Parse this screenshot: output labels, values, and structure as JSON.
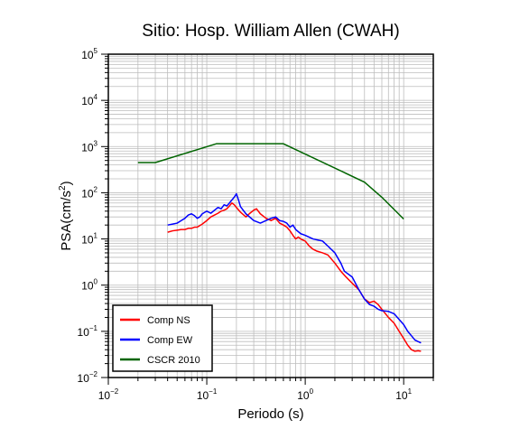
{
  "chart_data": {
    "type": "line",
    "title": "Sitio: Hosp. William Allen (CWAH)",
    "xlabel": "Periodo (s)",
    "ylabel_main": "PSA(cm/s",
    "ylabel_sup": "2",
    "ylabel_tail": ")",
    "xscale": "log",
    "yscale": "log",
    "xlim": [
      0.01,
      20
    ],
    "ylim": [
      0.01,
      100000
    ],
    "grid": true,
    "legend_position": "bottom-left",
    "x_tick_labels": [
      {
        "value": 0.01,
        "base": "10",
        "exp": "−2"
      },
      {
        "value": 0.1,
        "base": "10",
        "exp": "−1"
      },
      {
        "value": 1,
        "base": "10",
        "exp": "0"
      },
      {
        "value": 10,
        "base": "10",
        "exp": "1"
      }
    ],
    "y_tick_labels": [
      {
        "value": 0.01,
        "base": "10",
        "exp": "−2"
      },
      {
        "value": 0.1,
        "base": "10",
        "exp": "−1"
      },
      {
        "value": 1,
        "base": "10",
        "exp": "0"
      },
      {
        "value": 10,
        "base": "10",
        "exp": "1"
      },
      {
        "value": 100,
        "base": "10",
        "exp": "2"
      },
      {
        "value": 1000,
        "base": "10",
        "exp": "3"
      },
      {
        "value": 10000,
        "base": "10",
        "exp": "4"
      },
      {
        "value": 100000,
        "base": "10",
        "exp": "5"
      }
    ],
    "series": [
      {
        "name": "Comp NS",
        "color": "#ff0000",
        "points": [
          [
            0.04,
            14
          ],
          [
            0.045,
            15
          ],
          [
            0.05,
            15.5
          ],
          [
            0.055,
            16
          ],
          [
            0.06,
            16
          ],
          [
            0.065,
            17
          ],
          [
            0.07,
            17
          ],
          [
            0.075,
            18
          ],
          [
            0.08,
            18
          ],
          [
            0.09,
            21
          ],
          [
            0.1,
            25
          ],
          [
            0.11,
            30
          ],
          [
            0.12,
            33
          ],
          [
            0.13,
            36
          ],
          [
            0.14,
            40
          ],
          [
            0.15,
            42
          ],
          [
            0.16,
            45
          ],
          [
            0.17,
            52
          ],
          [
            0.18,
            60
          ],
          [
            0.19,
            55
          ],
          [
            0.2,
            48
          ],
          [
            0.22,
            38
          ],
          [
            0.25,
            30
          ],
          [
            0.27,
            35
          ],
          [
            0.3,
            42
          ],
          [
            0.32,
            45
          ],
          [
            0.35,
            35
          ],
          [
            0.4,
            28
          ],
          [
            0.45,
            25
          ],
          [
            0.5,
            28
          ],
          [
            0.55,
            22
          ],
          [
            0.6,
            20
          ],
          [
            0.65,
            18
          ],
          [
            0.7,
            15
          ],
          [
            0.75,
            12
          ],
          [
            0.8,
            10
          ],
          [
            0.85,
            11
          ],
          [
            0.9,
            10
          ],
          [
            1.0,
            9
          ],
          [
            1.1,
            7
          ],
          [
            1.2,
            6
          ],
          [
            1.3,
            5.5
          ],
          [
            1.5,
            5
          ],
          [
            1.7,
            4.5
          ],
          [
            2.0,
            3
          ],
          [
            2.3,
            2
          ],
          [
            2.6,
            1.5
          ],
          [
            3.0,
            1.1
          ],
          [
            3.5,
            0.8
          ],
          [
            4.0,
            0.5
          ],
          [
            4.5,
            0.42
          ],
          [
            5.0,
            0.45
          ],
          [
            5.5,
            0.38
          ],
          [
            6.0,
            0.3
          ],
          [
            7.0,
            0.2
          ],
          [
            8.0,
            0.15
          ],
          [
            9.0,
            0.1
          ],
          [
            10,
            0.07
          ],
          [
            11,
            0.05
          ],
          [
            12,
            0.04
          ],
          [
            13,
            0.037
          ],
          [
            14,
            0.038
          ],
          [
            15,
            0.037
          ]
        ]
      },
      {
        "name": "Comp EW",
        "color": "#0000ff",
        "points": [
          [
            0.04,
            20
          ],
          [
            0.045,
            21
          ],
          [
            0.05,
            22
          ],
          [
            0.055,
            25
          ],
          [
            0.06,
            28
          ],
          [
            0.065,
            33
          ],
          [
            0.07,
            35
          ],
          [
            0.075,
            32
          ],
          [
            0.08,
            28
          ],
          [
            0.085,
            30
          ],
          [
            0.09,
            35
          ],
          [
            0.1,
            40
          ],
          [
            0.11,
            36
          ],
          [
            0.12,
            42
          ],
          [
            0.13,
            48
          ],
          [
            0.14,
            45
          ],
          [
            0.15,
            55
          ],
          [
            0.16,
            52
          ],
          [
            0.17,
            60
          ],
          [
            0.18,
            70
          ],
          [
            0.19,
            80
          ],
          [
            0.2,
            95
          ],
          [
            0.21,
            70
          ],
          [
            0.22,
            50
          ],
          [
            0.25,
            35
          ],
          [
            0.3,
            25
          ],
          [
            0.35,
            22
          ],
          [
            0.4,
            25
          ],
          [
            0.45,
            28
          ],
          [
            0.5,
            30
          ],
          [
            0.55,
            25
          ],
          [
            0.6,
            24
          ],
          [
            0.65,
            22
          ],
          [
            0.7,
            18
          ],
          [
            0.75,
            20
          ],
          [
            0.8,
            16
          ],
          [
            0.9,
            13
          ],
          [
            1.0,
            12
          ],
          [
            1.2,
            10
          ],
          [
            1.5,
            9
          ],
          [
            1.7,
            7
          ],
          [
            2.0,
            5
          ],
          [
            2.3,
            3
          ],
          [
            2.5,
            2
          ],
          [
            3.0,
            1.5
          ],
          [
            3.5,
            0.8
          ],
          [
            4.0,
            0.5
          ],
          [
            4.5,
            0.38
          ],
          [
            5.0,
            0.35
          ],
          [
            5.5,
            0.3
          ],
          [
            6.0,
            0.28
          ],
          [
            7.0,
            0.27
          ],
          [
            8.0,
            0.24
          ],
          [
            9.0,
            0.18
          ],
          [
            10,
            0.14
          ],
          [
            11,
            0.1
          ],
          [
            12,
            0.08
          ],
          [
            13,
            0.065
          ],
          [
            14,
            0.06
          ],
          [
            15,
            0.056
          ]
        ]
      },
      {
        "name": "CSCR 2010",
        "color": "#006400",
        "points": [
          [
            0.02,
            450
          ],
          [
            0.03,
            450
          ],
          [
            0.125,
            1150
          ],
          [
            0.6,
            1150
          ],
          [
            4.0,
            170
          ],
          [
            6.0,
            80
          ],
          [
            10,
            27
          ]
        ]
      }
    ]
  }
}
